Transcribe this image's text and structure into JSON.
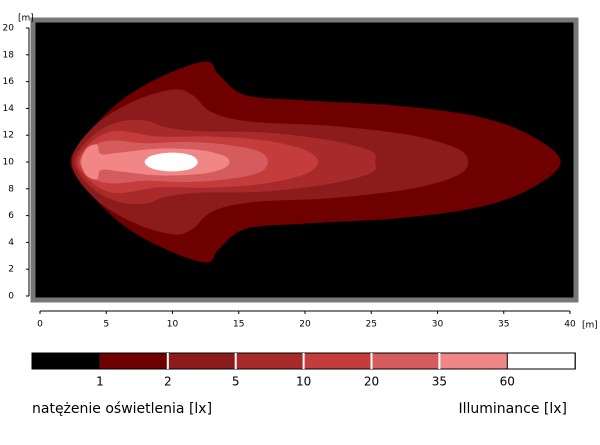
{
  "chart_data": {
    "type": "contour",
    "xlim": [
      0,
      40
    ],
    "ylim": [
      0,
      20
    ],
    "xticks": [
      0,
      5,
      10,
      15,
      20,
      25,
      30,
      35,
      40
    ],
    "yticks": [
      0,
      2,
      4,
      6,
      8,
      10,
      12,
      14,
      16,
      18,
      20
    ],
    "x_unit": "[m]",
    "y_unit": "[m]",
    "levels": [
      1,
      2,
      5,
      10,
      20,
      35,
      60
    ],
    "colors": [
      "#000000",
      "#6e0000",
      "#8c1b1b",
      "#a82a2a",
      "#c43c3c",
      "#d45c5c",
      "#f08686",
      "#ffffff"
    ],
    "contours": [
      {
        "x": [
          2.3,
          3.5,
          6,
          9,
          12.5,
          13.5,
          15.5,
          20,
          27,
          33,
          37,
          39.3,
          37,
          33,
          27,
          20,
          15.5,
          13.5,
          12.5,
          9,
          6,
          3.5
        ],
        "y": [
          10,
          12,
          14.5,
          16.3,
          17.5,
          16.5,
          15,
          14.6,
          14.2,
          13.4,
          12,
          10,
          8,
          6.6,
          5.8,
          5.4,
          5,
          3.5,
          2.5,
          3.7,
          5.5,
          8
        ]
      },
      {
        "x": [
          2.4,
          4,
          7,
          10,
          11.5,
          13,
          16,
          22,
          28,
          31.5,
          32.3,
          31.5,
          28,
          22,
          16,
          13,
          11.5,
          10,
          7,
          4
        ],
        "y": [
          10,
          12.6,
          14.5,
          15.4,
          15,
          13.7,
          13,
          12.7,
          12,
          11,
          10,
          9,
          8,
          7.3,
          7,
          6.3,
          5,
          4.6,
          5.5,
          7.4
        ]
      },
      {
        "x": [
          2.6,
          4,
          6,
          8,
          9.5,
          12,
          17,
          22,
          25,
          25.3,
          25,
          22,
          17,
          12,
          9.5,
          8,
          6,
          4
        ],
        "y": [
          10,
          12,
          13,
          13.1,
          12.6,
          12.3,
          12.2,
          11.6,
          10.8,
          10,
          9.2,
          8.4,
          7.8,
          7.7,
          7.4,
          6.9,
          7,
          8
        ]
      },
      {
        "x": [
          2.8,
          4,
          5.5,
          7,
          9,
          13,
          17,
          20,
          21,
          20,
          17,
          13,
          9,
          7,
          5.5,
          4
        ],
        "y": [
          10,
          11.6,
          12.3,
          12.2,
          11.9,
          11.9,
          11.6,
          10.9,
          10,
          9.1,
          8.4,
          8.1,
          8.1,
          7.8,
          7.7,
          8.4
        ]
      },
      {
        "x": [
          3,
          4,
          5.5,
          8,
          11,
          14,
          16.5,
          17.2,
          16.5,
          14,
          11,
          8,
          5.5,
          4
        ],
        "y": [
          10,
          11.2,
          11.6,
          11.4,
          11.5,
          11.3,
          10.8,
          10,
          9.2,
          8.7,
          8.5,
          8.6,
          8.4,
          8.8
        ]
      },
      {
        "x": [
          3.1,
          3.5,
          4.3,
          4.6,
          6,
          9,
          12,
          13.8,
          14.3,
          13.8,
          12,
          9,
          6,
          4.6,
          4.3,
          3.5
        ],
        "y": [
          10,
          11,
          11.3,
          10.6,
          10.7,
          11,
          10.9,
          10.5,
          10,
          9.5,
          9.1,
          9,
          9.3,
          9.4,
          8.7,
          9
        ]
      },
      {
        "x": [
          7.9,
          8.5,
          10,
          11.4,
          11.9,
          11.4,
          10,
          8.5
        ],
        "y": [
          10,
          10.5,
          10.7,
          10.5,
          10,
          9.5,
          9.3,
          9.5
        ]
      }
    ],
    "legend_left": "natężenie oświetlenia [lx]",
    "legend_right": "Illuminance [lx]"
  }
}
